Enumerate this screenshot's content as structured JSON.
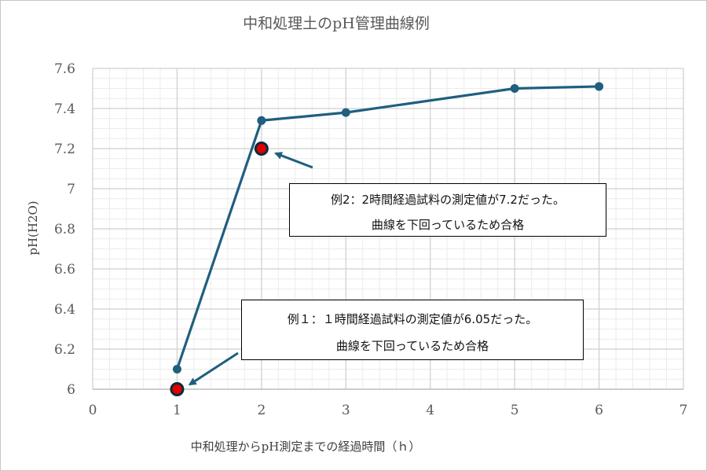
{
  "chart_data": {
    "type": "scatter",
    "title": "中和処理土のpH管理曲線例",
    "xlabel": "中和処理からpH測定までの経過時間（ｈ）",
    "ylabel": "pH(H2O)",
    "xlim": [
      0,
      7
    ],
    "ylim": [
      6,
      7.6
    ],
    "x_ticks": [
      "0",
      "1",
      "2",
      "3",
      "4",
      "5",
      "6",
      "7"
    ],
    "y_ticks": [
      "6",
      "6.2",
      "6.4",
      "6.6",
      "6.8",
      "7",
      "7.2",
      "7.4",
      "7.6"
    ],
    "grid": true,
    "series": [
      {
        "mode": "lines+markers",
        "color": "#1f5f7f",
        "points": [
          {
            "x": 1,
            "y": 6.1
          },
          {
            "x": 2,
            "y": 7.34
          },
          {
            "x": 3,
            "y": 7.38
          },
          {
            "x": 5,
            "y": 7.5
          },
          {
            "x": 6,
            "y": 7.51
          }
        ]
      },
      {
        "mode": "markers",
        "color": "#e00000",
        "edge_color": "#0d2a3a",
        "points": [
          {
            "x": 1,
            "y": 6.0
          },
          {
            "x": 2,
            "y": 7.2
          }
        ]
      }
    ],
    "annotations": [
      {
        "lines": [
          "例2：2時間経過試料の測定値が7.2だった。",
          "曲線を下回っているため合格"
        ],
        "points_to": {
          "x": 2,
          "y": 7.2
        }
      },
      {
        "lines": [
          "例１：１時間経過試料の測定値が6.05だった。",
          "曲線を下回っているため合格"
        ],
        "points_to": {
          "x": 1,
          "y": 6.0
        }
      }
    ]
  }
}
